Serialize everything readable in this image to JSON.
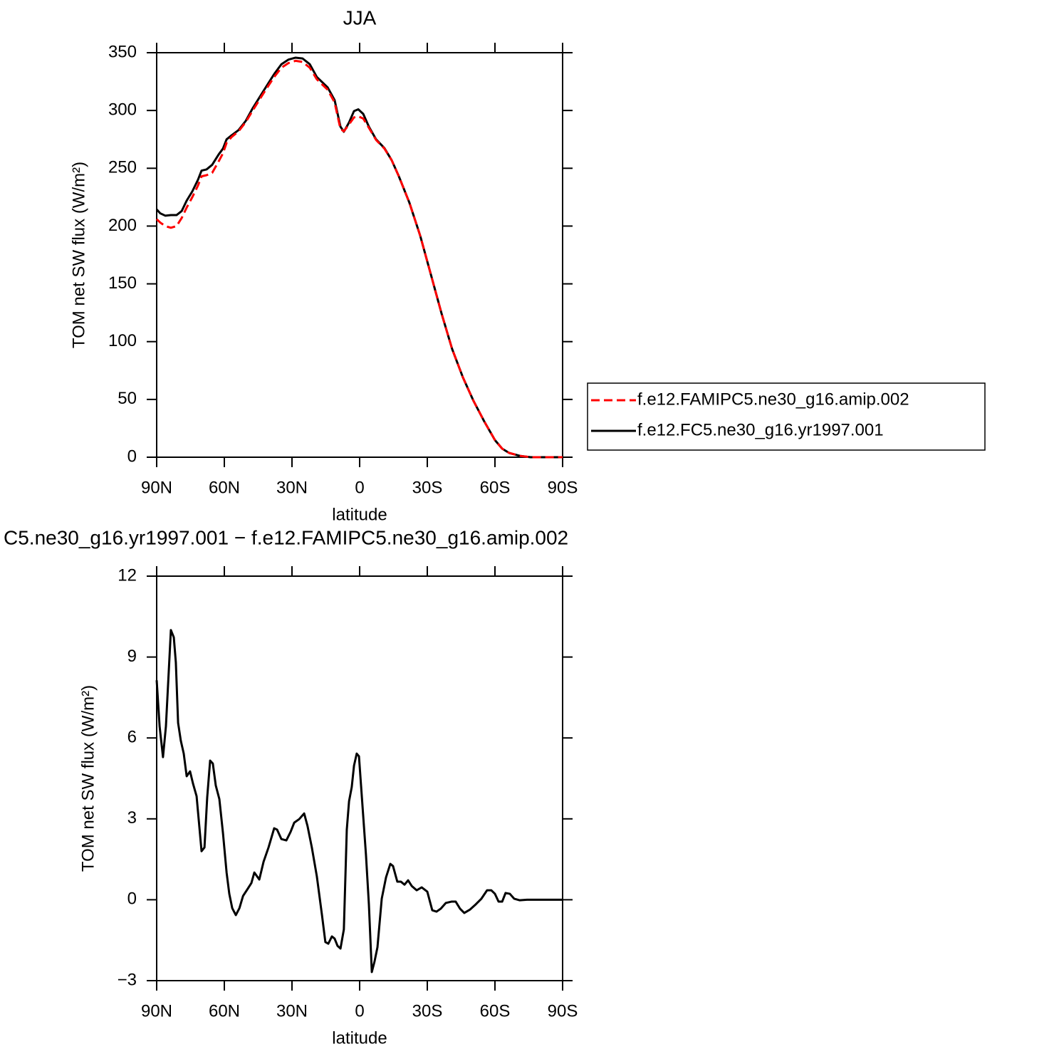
{
  "chart_data": [
    {
      "type": "line",
      "title": "JJA",
      "xlabel": "latitude",
      "ylabel": "TOM net SW flux (W/m²)",
      "xlim": [
        90,
        -90
      ],
      "ylim": [
        0,
        350
      ],
      "xticks": [
        {
          "value": 90,
          "label": "90N"
        },
        {
          "value": 60,
          "label": "60N"
        },
        {
          "value": 30,
          "label": "30N"
        },
        0,
        {
          "value": -30,
          "label": "30S"
        },
        {
          "value": -60,
          "label": "60S"
        },
        {
          "value": -90,
          "label": "90S"
        }
      ],
      "yticks": [
        0,
        50,
        100,
        150,
        200,
        250,
        300,
        350
      ],
      "x": [
        90,
        88.4,
        86.2,
        83.7,
        81.2,
        78.9,
        76.7,
        74.2,
        71.7,
        70.1,
        67.9,
        65.4,
        62.5,
        60.6,
        59,
        56.8,
        53.7,
        50.5,
        47.4,
        42.6,
        37.9,
        34.7,
        31.6,
        28.4,
        25.3,
        22.1,
        19,
        14.2,
        11.1,
        8.5,
        7,
        4.7,
        2.5,
        0.6,
        -1.6,
        -4.1,
        -7.3,
        -11,
        -14.2,
        -17.4,
        -22.1,
        -26.8,
        -31.6,
        -36.3,
        -41,
        -45.8,
        -50.5,
        -55.3,
        -60,
        -63.2,
        -66.3,
        -71,
        -75.8,
        -90
      ],
      "series": [
        {
          "name": "f.e12.FAMIPC5.ne30_g16.amip.002",
          "color": "#ff0000",
          "dashed": true,
          "values": [
            206,
            203,
            200,
            198.5,
            200,
            207,
            216,
            225,
            235,
            243,
            244,
            246,
            256,
            263,
            272,
            277,
            282,
            290,
            300,
            315,
            329,
            337,
            341,
            343,
            342,
            337,
            327,
            318,
            307,
            284,
            282,
            288,
            294,
            295,
            293,
            285,
            274.5,
            267,
            257,
            243,
            220,
            192,
            158,
            124.5,
            93.7,
            69,
            48.7,
            30.8,
            14.8,
            7.4,
            3.7,
            1.2,
            0,
            0
          ]
        },
        {
          "name": "f.e12.FC5.ne30_g16.yr1997.001",
          "color": "#000000",
          "dashed": false,
          "values": [
            214.4,
            211,
            209,
            209.5,
            209.5,
            213,
            222,
            230,
            240,
            248,
            249,
            253,
            262,
            267,
            275,
            278.5,
            283,
            291,
            302,
            317,
            331.5,
            340,
            344,
            345.7,
            345,
            340,
            329,
            320,
            309,
            286,
            281.6,
            289.6,
            299.5,
            301,
            297,
            286,
            275,
            267.4,
            257,
            243,
            220,
            192,
            158,
            124.5,
            93.7,
            69,
            48.7,
            30.8,
            14.8,
            7.4,
            3.7,
            1.2,
            0,
            0
          ]
        }
      ]
    },
    {
      "type": "line",
      "title": "C5.ne30_g16.yr1997.001 − f.e12.FAMIPC5.ne30_g16.amip.002",
      "xlabel": "latitude",
      "ylabel": "TOM net SW flux (W/m²)",
      "xlim": [
        90,
        -90
      ],
      "ylim": [
        -3,
        12
      ],
      "xticks": [
        {
          "value": 90,
          "label": "90N"
        },
        {
          "value": 60,
          "label": "60N"
        },
        {
          "value": 30,
          "label": "30N"
        },
        0,
        {
          "value": -30,
          "label": "30S"
        },
        {
          "value": -60,
          "label": "60S"
        },
        {
          "value": -90,
          "label": "90S"
        }
      ],
      "yticks": [
        {
          "value": -3,
          "label": "−3"
        },
        0,
        3,
        6,
        9,
        12
      ],
      "x": [
        90,
        88.7,
        87.2,
        85.9,
        84.6,
        83.7,
        82.4,
        81.5,
        80.5,
        79.3,
        78,
        76.7,
        75.2,
        73.9,
        72.3,
        70.1,
        68.8,
        67.6,
        66.3,
        65.1,
        63.8,
        62.2,
        60.6,
        59,
        57.8,
        56.5,
        54.9,
        53.3,
        51.7,
        49.6,
        48,
        46.7,
        44.5,
        42.6,
        40.4,
        37.9,
        36.6,
        34.7,
        32.5,
        30.6,
        29,
        26.8,
        24.6,
        23.1,
        21.2,
        19,
        16.7,
        15.2,
        13.9,
        12.3,
        11.1,
        9.8,
        8.5,
        7,
        5.7,
        4.7,
        3.5,
        2.5,
        1.3,
        0.3,
        -1,
        -2.8,
        -4.1,
        -5.4,
        -6.6,
        -7.9,
        -9.8,
        -11.7,
        -13.6,
        -14.8,
        -16.7,
        -18.3,
        -19.9,
        -21.5,
        -23.1,
        -25.3,
        -27.5,
        -30,
        -32.2,
        -34.1,
        -36,
        -38.2,
        -40.7,
        -42.6,
        -44.5,
        -46.4,
        -49,
        -51.5,
        -54,
        -56.5,
        -58.4,
        -60,
        -61.6,
        -63.2,
        -64.7,
        -66.6,
        -68.5,
        -71,
        -74.2,
        -90
      ],
      "series": [
        {
          "color": "#000000",
          "dashed": false,
          "values": [
            8.14,
            6.43,
            5.29,
            6.43,
            8.54,
            10.0,
            9.73,
            8.8,
            6.56,
            5.9,
            5.42,
            4.58,
            4.76,
            4.31,
            3.84,
            1.8,
            1.94,
            3.79,
            5.16,
            5.05,
            4.24,
            3.73,
            2.47,
            1.01,
            0.22,
            -0.31,
            -0.57,
            -0.31,
            0.14,
            0.41,
            0.62,
            1.01,
            0.75,
            1.41,
            1.94,
            2.65,
            2.6,
            2.25,
            2.2,
            2.52,
            2.86,
            2.99,
            3.2,
            2.73,
            1.94,
            0.88,
            -0.57,
            -1.57,
            -1.63,
            -1.36,
            -1.44,
            -1.71,
            -1.81,
            -1.1,
            2.6,
            3.65,
            4.18,
            4.97,
            5.42,
            5.32,
            3.79,
            1.67,
            -0.17,
            -2.68,
            -2.29,
            -1.76,
            0.04,
            0.83,
            1.33,
            1.25,
            0.67,
            0.67,
            0.56,
            0.72,
            0.51,
            0.35,
            0.46,
            0.3,
            -0.39,
            -0.44,
            -0.33,
            -0.12,
            -0.07,
            -0.07,
            -0.33,
            -0.49,
            -0.36,
            -0.17,
            0.04,
            0.35,
            0.35,
            0.22,
            -0.07,
            -0.07,
            0.25,
            0.22,
            0.04,
            -0.02,
            0,
            0
          ]
        }
      ]
    }
  ]
}
